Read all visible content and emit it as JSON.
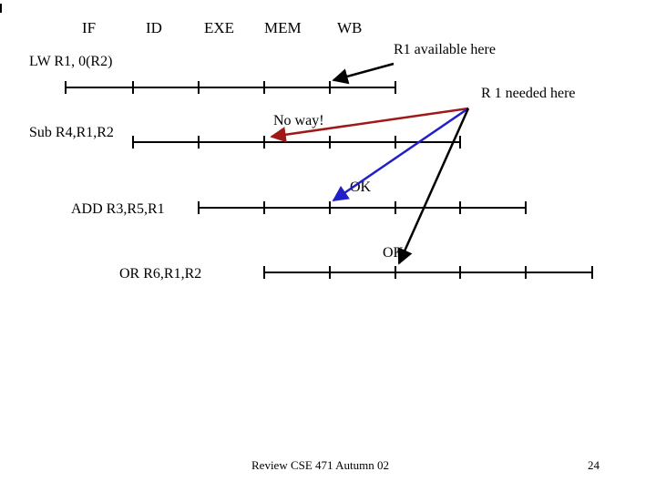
{
  "stages": [
    "IF",
    "ID",
    "EXE",
    "MEM",
    "WB"
  ],
  "instructions": [
    {
      "label": "LW  R1, 0(R2)"
    },
    {
      "label": "Sub R4,R1,R2"
    },
    {
      "label": "ADD R3,R5,R1"
    },
    {
      "label": "OR R6,R1,R2"
    }
  ],
  "annotations": {
    "r1_available": "R1 available here",
    "r1_needed": "R 1 needed here",
    "no_way": "No way!",
    "ok_1": "OK",
    "ok_2": "OK"
  },
  "footer": {
    "text": "Review CSE 471 Autumn 02",
    "page_number": "24"
  },
  "colors": {
    "line": "#000000",
    "no_way_arrow": "#a01818",
    "ok_arrow_1": "#2020c8",
    "ok_arrow_2": "#000000"
  }
}
